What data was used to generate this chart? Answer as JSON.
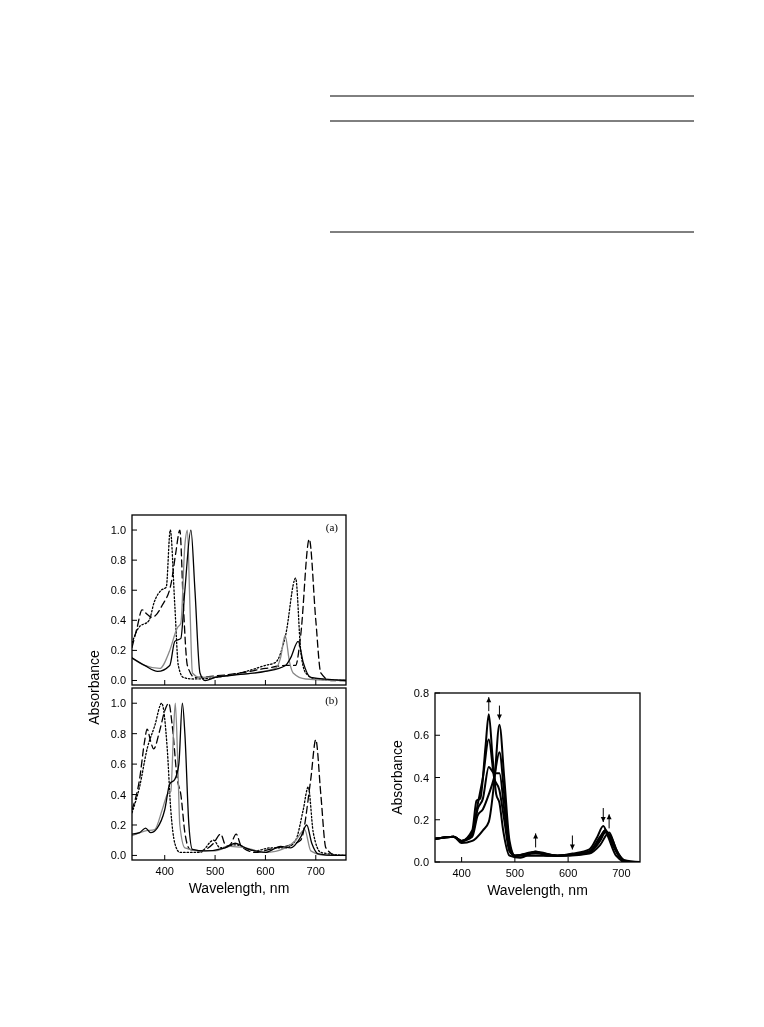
{
  "chart_data": [
    {
      "type": "line",
      "ylabel": "Absorbance",
      "annotations": [
        "(a)"
      ],
      "xlim": [
        335,
        760
      ],
      "xticks": [
        400,
        500,
        600,
        700
      ],
      "ylim": [
        -0.03,
        1.1
      ],
      "yticks": [
        {
          "value": 0,
          "label": "0.0"
        },
        {
          "value": 0.2,
          "label": "0.2"
        },
        {
          "value": 0.4,
          "label": "0.4"
        },
        {
          "value": 0.6,
          "label": "0.6"
        },
        {
          "value": 0.8,
          "label": "0.8"
        },
        {
          "value": 1,
          "label": "1.0"
        }
      ],
      "tick_labels": "y",
      "grid": false,
      "series": [
        {
          "color": "#000000",
          "line_style": "dotted",
          "x": [
            335,
            348,
            369,
            379,
            393,
            403,
            411,
            420,
            427,
            437,
            457,
            500,
            550,
            600,
            620,
            640,
            660,
            670,
            680,
            700,
            760
          ],
          "values": [
            0.25,
            0.35,
            0.4,
            0.52,
            0.6,
            0.62,
            1.0,
            0.5,
            0.1,
            0.02,
            0.01,
            0.02,
            0.05,
            0.1,
            0.12,
            0.3,
            0.68,
            0.2,
            0.05,
            0.01,
            0.0
          ]
        },
        {
          "color": "#000000",
          "line_style": "dashed",
          "x": [
            335,
            345,
            355,
            365,
            375,
            395,
            413,
            422,
            430,
            437,
            445,
            460,
            500,
            550,
            600,
            640,
            660,
            670,
            687,
            700,
            710,
            730,
            760
          ],
          "values": [
            0.22,
            0.35,
            0.47,
            0.44,
            0.42,
            0.5,
            0.65,
            0.85,
            1.0,
            0.5,
            0.1,
            0.02,
            0.03,
            0.05,
            0.08,
            0.1,
            0.1,
            0.3,
            0.94,
            0.4,
            0.05,
            0.0,
            0.0
          ]
        },
        {
          "color": "#888888",
          "line_style": "solid",
          "x": [
            335,
            360,
            390,
            410,
            425,
            432,
            440,
            445,
            450,
            455,
            470,
            550,
            620,
            630,
            639,
            648,
            655,
            680,
            760
          ],
          "values": [
            0.15,
            0.1,
            0.08,
            0.2,
            0.35,
            0.38,
            0.9,
            1.0,
            0.5,
            0.05,
            0.02,
            0.04,
            0.08,
            0.15,
            0.3,
            0.12,
            0.05,
            0.01,
            0.0
          ]
        },
        {
          "color": "#000000",
          "line_style": "solid",
          "x": [
            335,
            360,
            386,
            410,
            420,
            432,
            440,
            452,
            460,
            470,
            480,
            500,
            550,
            600,
            640,
            650,
            665,
            675,
            690,
            760
          ],
          "values": [
            0.15,
            0.1,
            0.06,
            0.1,
            0.26,
            0.28,
            0.6,
            1.0,
            0.6,
            0.05,
            0.0,
            0.02,
            0.04,
            0.06,
            0.1,
            0.15,
            0.26,
            0.12,
            0.02,
            0.0
          ]
        }
      ]
    },
    {
      "type": "line",
      "xlabel": "Wavelength, nm",
      "annotations": [
        "(b)"
      ],
      "xlim": [
        335,
        760
      ],
      "xticks": [
        400,
        500,
        600,
        700
      ],
      "ylim": [
        -0.03,
        1.1
      ],
      "yticks": [
        {
          "value": 0,
          "label": "0.0"
        },
        {
          "value": 0.2,
          "label": "0.2"
        },
        {
          "value": 0.4,
          "label": "0.4"
        },
        {
          "value": 0.6,
          "label": "0.6"
        },
        {
          "value": 0.8,
          "label": "0.8"
        },
        {
          "value": 1,
          "label": "1.0"
        }
      ],
      "grid": false,
      "series": [
        {
          "color": "#000000",
          "line_style": "dotted",
          "x": [
            335,
            350,
            365,
            380,
            394,
            405,
            412,
            420,
            430,
            470,
            497,
            510,
            540,
            580,
            610,
            640,
            660,
            675,
            685,
            695,
            710,
            760
          ],
          "values": [
            0.28,
            0.45,
            0.7,
            0.85,
            1.0,
            0.7,
            0.3,
            0.08,
            0.02,
            0.02,
            0.1,
            0.05,
            0.07,
            0.03,
            0.05,
            0.05,
            0.1,
            0.3,
            0.45,
            0.15,
            0.02,
            0.0
          ]
        },
        {
          "color": "#000000",
          "line_style": "dashed",
          "x": [
            335,
            350,
            360,
            365,
            372,
            378,
            390,
            400,
            408,
            415,
            425,
            432,
            440,
            450,
            470,
            497,
            511,
            522,
            530,
            542,
            552,
            580,
            620,
            640,
            670,
            690,
            700,
            710,
            720,
            740,
            760
          ],
          "values": [
            0.3,
            0.5,
            0.75,
            0.83,
            0.75,
            0.7,
            0.82,
            0.95,
            1.0,
            0.85,
            0.5,
            0.4,
            0.15,
            0.04,
            0.03,
            0.08,
            0.14,
            0.06,
            0.07,
            0.14,
            0.06,
            0.02,
            0.05,
            0.06,
            0.1,
            0.5,
            0.76,
            0.4,
            0.05,
            0.0,
            0.0
          ]
        },
        {
          "color": "#888888",
          "line_style": "solid",
          "x": [
            335,
            360,
            380,
            395,
            405,
            412,
            418,
            421,
            426,
            430,
            440,
            470,
            500,
            530,
            560,
            600,
            640,
            660,
            678,
            690,
            720,
            760
          ],
          "values": [
            0.13,
            0.16,
            0.17,
            0.3,
            0.4,
            0.42,
            0.85,
            1.0,
            0.6,
            0.2,
            0.05,
            0.03,
            0.03,
            0.06,
            0.05,
            0.02,
            0.05,
            0.1,
            0.17,
            0.03,
            0.0,
            0.0
          ]
        },
        {
          "color": "#000000",
          "line_style": "solid",
          "x": [
            335,
            350,
            362,
            372,
            385,
            400,
            410,
            420,
            428,
            435,
            440,
            448,
            455,
            480,
            520,
            540,
            560,
            600,
            630,
            650,
            670,
            682,
            692,
            705,
            740,
            760
          ],
          "values": [
            0.14,
            0.15,
            0.18,
            0.15,
            0.18,
            0.3,
            0.47,
            0.5,
            0.6,
            1.0,
            0.8,
            0.2,
            0.04,
            0.03,
            0.05,
            0.08,
            0.05,
            0.02,
            0.06,
            0.05,
            0.12,
            0.2,
            0.08,
            0.01,
            0.0,
            0.0
          ]
        }
      ]
    },
    {
      "type": "line",
      "xlabel": "Wavelength, nm",
      "ylabel": "Absorbance",
      "xlim": [
        350,
        735
      ],
      "xticks": [
        400,
        500,
        600,
        700
      ],
      "ylim": [
        0,
        0.8
      ],
      "yticks": [
        {
          "value": 0,
          "label": "0.0"
        },
        {
          "value": 0.2,
          "label": "0.2"
        },
        {
          "value": 0.4,
          "label": "0.4"
        },
        {
          "value": 0.6,
          "label": "0.6"
        },
        {
          "value": 0.8,
          "label": "0.8"
        }
      ],
      "grid": false,
      "series": [
        {
          "color": "#000000",
          "line_style": "solid",
          "x": [
            350,
            385,
            400,
            420,
            440,
            451,
            462,
            471,
            480,
            490,
            500,
            540,
            580,
            608,
            640,
            655,
            666,
            675,
            690,
            710,
            735
          ],
          "values": [
            0.11,
            0.12,
            0.09,
            0.1,
            0.15,
            0.19,
            0.4,
            0.65,
            0.4,
            0.1,
            0.03,
            0.03,
            0.03,
            0.04,
            0.06,
            0.12,
            0.17,
            0.12,
            0.03,
            0.0,
            0.0
          ]
        },
        {
          "color": "#000000",
          "line_style": "solid",
          "x": [
            350,
            385,
            400,
            420,
            430,
            440,
            451,
            461,
            471,
            480,
            490,
            500,
            539,
            580,
            608,
            640,
            660,
            670,
            680,
            695,
            710,
            735
          ],
          "values": [
            0.11,
            0.12,
            0.1,
            0.12,
            0.22,
            0.25,
            0.32,
            0.4,
            0.52,
            0.32,
            0.08,
            0.03,
            0.04,
            0.03,
            0.035,
            0.05,
            0.12,
            0.15,
            0.1,
            0.03,
            0.0,
            0.0
          ]
        },
        {
          "color": "#000000",
          "line_style": "solid",
          "x": [
            350,
            385,
            400,
            420,
            430,
            440,
            451,
            461,
            471,
            480,
            490,
            500,
            539,
            580,
            608,
            640,
            660,
            670,
            680,
            695,
            710,
            735
          ],
          "values": [
            0.11,
            0.12,
            0.1,
            0.13,
            0.25,
            0.3,
            0.45,
            0.42,
            0.42,
            0.25,
            0.06,
            0.03,
            0.045,
            0.03,
            0.035,
            0.05,
            0.11,
            0.15,
            0.11,
            0.03,
            0.0,
            0.0
          ]
        },
        {
          "color": "#000000",
          "line_style": "solid",
          "x": [
            350,
            385,
            400,
            420,
            430,
            440,
            451,
            461,
            471,
            480,
            490,
            500,
            539,
            580,
            608,
            640,
            660,
            670,
            680,
            695,
            710,
            735
          ],
          "values": [
            0.11,
            0.12,
            0.1,
            0.14,
            0.27,
            0.4,
            0.58,
            0.4,
            0.34,
            0.2,
            0.05,
            0.03,
            0.048,
            0.03,
            0.033,
            0.045,
            0.1,
            0.14,
            0.12,
            0.035,
            0.0,
            0.0
          ]
        },
        {
          "color": "#000000",
          "line_style": "solid",
          "x": [
            350,
            385,
            400,
            420,
            428,
            435,
            445,
            451,
            458,
            465,
            471,
            478,
            490,
            510,
            539,
            560,
            600,
            640,
            660,
            677,
            690,
            705,
            735
          ],
          "values": [
            0.11,
            0.12,
            0.1,
            0.15,
            0.29,
            0.3,
            0.55,
            0.7,
            0.5,
            0.32,
            0.28,
            0.15,
            0.03,
            0.02,
            0.05,
            0.03,
            0.03,
            0.04,
            0.08,
            0.14,
            0.06,
            0.01,
            0.0
          ]
        }
      ]
    }
  ]
}
